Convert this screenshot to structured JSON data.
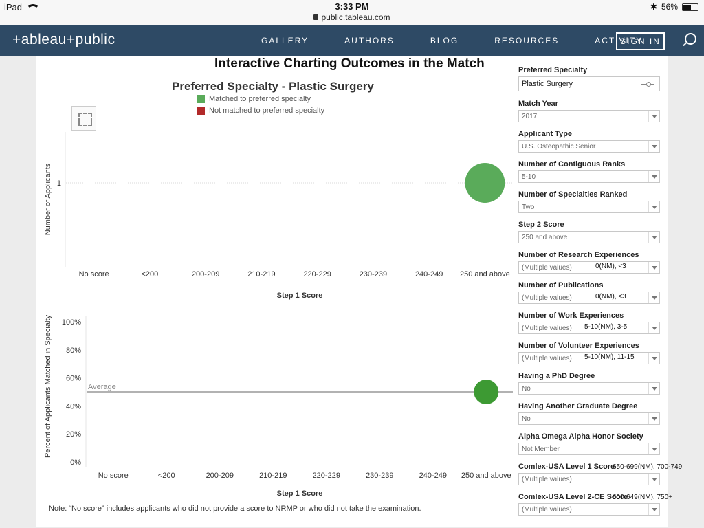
{
  "status_bar": {
    "device": "iPad",
    "time": "3:33 PM",
    "url": "public.tableau.com",
    "battery": "56%",
    "battery_level": 0.56
  },
  "nav": {
    "logo": "+ableau+public",
    "items": [
      "GALLERY",
      "AUTHORS",
      "BLOG",
      "RESOURCES",
      "ACTIVITY"
    ],
    "signin": "SIGN IN"
  },
  "dashboard": {
    "title": "Interactive Charting Outcomes in the Match",
    "note": "Note: “No score” includes applicants who did not provide a score to NRMP or who did not take the examination."
  },
  "chart_data": [
    {
      "type": "scatter",
      "title": "Preferred Specialty - Plastic Surgery",
      "xlabel": "Step 1 Score",
      "ylabel": "Number of Applicants",
      "categories": [
        "No score",
        "<200",
        "200-209",
        "210-219",
        "220-229",
        "230-239",
        "240-249",
        "250 and above"
      ],
      "y_ticks": [
        "1"
      ],
      "legend": [
        {
          "name": "Matched to preferred specialty",
          "color": "#5aab5a"
        },
        {
          "name": "Not matched to preferred specialty",
          "color": "#b22a2a"
        }
      ],
      "series": [
        {
          "name": "Matched to preferred specialty",
          "color": "#5aab5a",
          "points": [
            {
              "x": "250 and above",
              "y": 1
            }
          ]
        }
      ]
    },
    {
      "type": "scatter",
      "xlabel": "Step 1 Score",
      "ylabel": "Percent of Applicants Matched in Specialty",
      "categories": [
        "No score",
        "<200",
        "200-209",
        "210-219",
        "220-229",
        "230-239",
        "240-249",
        "250 and above"
      ],
      "y_ticks": [
        "100%",
        "80%",
        "60%",
        "40%",
        "20%",
        "0%"
      ],
      "ylim": [
        0,
        100
      ],
      "reference_line": {
        "label": "Average",
        "value": 50
      },
      "series": [
        {
          "name": "Matched",
          "color": "#3d9a33",
          "points": [
            {
              "x": "250 and above",
              "y": 50
            }
          ]
        }
      ]
    }
  ],
  "filters": [
    {
      "label": "Preferred Specialty",
      "value": "Plastic Surgery",
      "style": "big"
    },
    {
      "label": "Match Year",
      "value": "2017"
    },
    {
      "label": "Applicant Type",
      "value": "U.S. Osteopathic Senior"
    },
    {
      "label": "Number of Contiguous Ranks",
      "value": "5-10"
    },
    {
      "label": "Number of Specialties Ranked",
      "value": "Two"
    },
    {
      "label": "Step 2 Score",
      "value": "250 and above"
    },
    {
      "label": "Number of Research Experiences",
      "value": "(Multiple values)",
      "annotation": "0(NM), <3"
    },
    {
      "label": "Number of Publications",
      "value": "(Multiple values)",
      "annotation": "0(NM), <3"
    },
    {
      "label": "Number of Work Experiences",
      "value": "(Multiple values)",
      "annotation": "5-10(NM), 3-5"
    },
    {
      "label": "Number of Volunteer Experiences",
      "value": "(Multiple values)",
      "annotation": "5-10(NM), 11-15"
    },
    {
      "label": "Having a PhD Degree",
      "value": "No"
    },
    {
      "label": "Having Another Graduate Degree",
      "value": "No"
    },
    {
      "label": "Alpha Omega Alpha Honor Society",
      "value": "Not Member"
    },
    {
      "label": "Comlex-USA Level 1 Score",
      "value": "(Multiple values)",
      "annotation": "650-699(NM), 700-749"
    },
    {
      "label": "Comlex-USA Level 2-CE Score",
      "value": "(Multiple values)",
      "annotation": "600-649(NM), 750+"
    }
  ]
}
